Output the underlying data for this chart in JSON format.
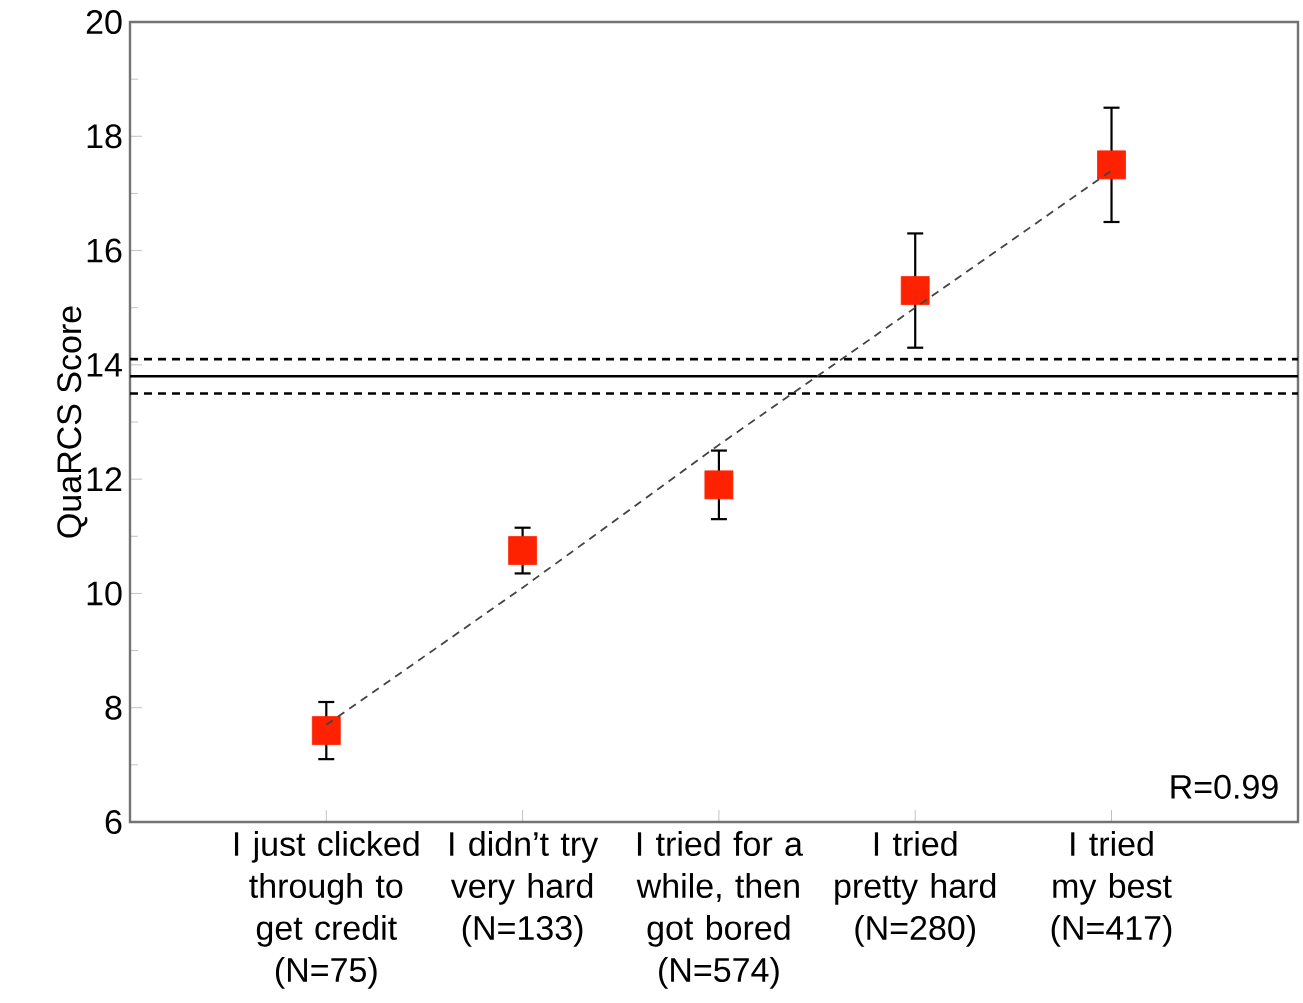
{
  "chart_data": {
    "type": "scatter",
    "ylabel": "QuaRCS Score",
    "categories": [
      "I just clicked through to get credit (N=75)",
      "I didn’t try very hard (N=133)",
      "I tried for a while, then got bored (N=574)",
      "I tried pretty hard (N=280)",
      "I tried my best (N=417)"
    ],
    "ylim": [
      6,
      20
    ],
    "yticks": [
      6,
      8,
      10,
      12,
      14,
      16,
      18,
      20
    ],
    "marker": "square",
    "series": [
      {
        "color": "#ff2200",
        "values": [
          7.6,
          10.75,
          11.9,
          15.3,
          17.5
        ],
        "errors": [
          0.5,
          0.4,
          0.6,
          1.0,
          1.0
        ]
      },
      {
        "type": "line",
        "color": "#444444",
        "line_style": "dashed",
        "marker": "none",
        "values": [
          7.7,
          10.1,
          12.6,
          15.0,
          17.4
        ]
      }
    ],
    "ref_lines": [
      {
        "axis": "y",
        "value": 13.8,
        "line_style": "solid",
        "color": "#000000"
      },
      {
        "axis": "y",
        "value": 14.1,
        "line_style": "dashed",
        "color": "#000000"
      },
      {
        "axis": "y",
        "value": 13.5,
        "line_style": "dashed",
        "color": "#000000"
      }
    ],
    "annotations": [
      "R=0.99"
    ]
  }
}
